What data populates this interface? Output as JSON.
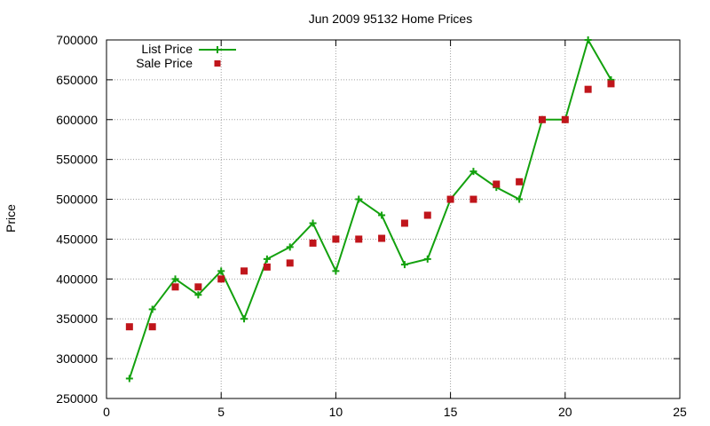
{
  "chart_data": {
    "type": "line",
    "title": "Jun 2009 95132 Home Prices",
    "xlabel": "",
    "ylabel": "Price",
    "xlim": [
      0,
      25
    ],
    "ylim": [
      250000,
      700000
    ],
    "x_ticks": [
      0,
      5,
      10,
      15,
      20,
      25
    ],
    "y_ticks": [
      250000,
      300000,
      350000,
      400000,
      450000,
      500000,
      550000,
      600000,
      650000,
      700000
    ],
    "grid": true,
    "legend_position": "top-left",
    "series": [
      {
        "name": "List Price",
        "style": "line-with-plus-markers",
        "color": "#13a10e",
        "x": [
          1,
          2,
          3,
          4,
          5,
          6,
          7,
          8,
          9,
          10,
          11,
          12,
          13,
          14,
          15,
          16,
          17,
          18,
          19,
          20,
          21,
          22
        ],
        "values": [
          275000,
          362000,
          400000,
          380000,
          410000,
          350000,
          425000,
          440000,
          470000,
          410000,
          500000,
          480000,
          418000,
          425000,
          500000,
          535000,
          515000,
          500000,
          600000,
          600000,
          700000,
          650000
        ]
      },
      {
        "name": "Sale Price",
        "style": "square-markers",
        "color": "#c0151b",
        "x": [
          1,
          2,
          3,
          4,
          5,
          6,
          7,
          8,
          9,
          10,
          11,
          12,
          13,
          14,
          15,
          16,
          17,
          18,
          19,
          20,
          21,
          22
        ],
        "values": [
          340000,
          340000,
          390000,
          390000,
          400000,
          410000,
          415000,
          420000,
          445000,
          450000,
          450000,
          451000,
          470000,
          480000,
          500000,
          500000,
          519000,
          522000,
          600000,
          600000,
          638000,
          645000
        ]
      }
    ]
  }
}
